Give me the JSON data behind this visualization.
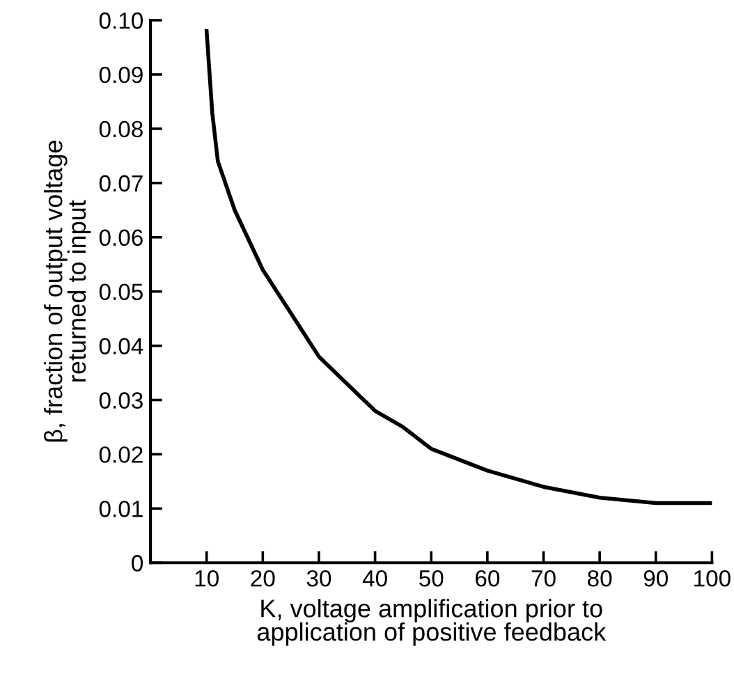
{
  "chart_data": {
    "type": "line",
    "xlabel": "K, voltage amplification prior to\napplication of positive feedback",
    "ylabel": "β, fraction of output voltage\nreturned to input",
    "x": [
      10,
      11,
      12,
      15,
      20,
      25,
      30,
      35,
      40,
      45,
      50,
      60,
      70,
      80,
      90,
      100
    ],
    "series": [
      {
        "color": "#000000",
        "values": [
          0.098,
          0.083,
          0.074,
          0.065,
          0.054,
          0.046,
          0.038,
          0.033,
          0.028,
          0.025,
          0.021,
          0.017,
          0.014,
          0.012,
          0.011,
          0.011
        ]
      }
    ],
    "xlim": [
      0,
      100
    ],
    "xticks": [
      10,
      20,
      30,
      40,
      50,
      60,
      70,
      80,
      90,
      100
    ],
    "ylim": [
      0,
      0.1
    ],
    "yticks": [
      0,
      0.01,
      0.02,
      0.03,
      0.04,
      0.05,
      0.06,
      0.07,
      0.08,
      0.09,
      {
        "value": 0.1,
        "label": "0.10"
      }
    ],
    "grid": false,
    "legend": false,
    "marker": "none",
    "line_style": "solid"
  }
}
